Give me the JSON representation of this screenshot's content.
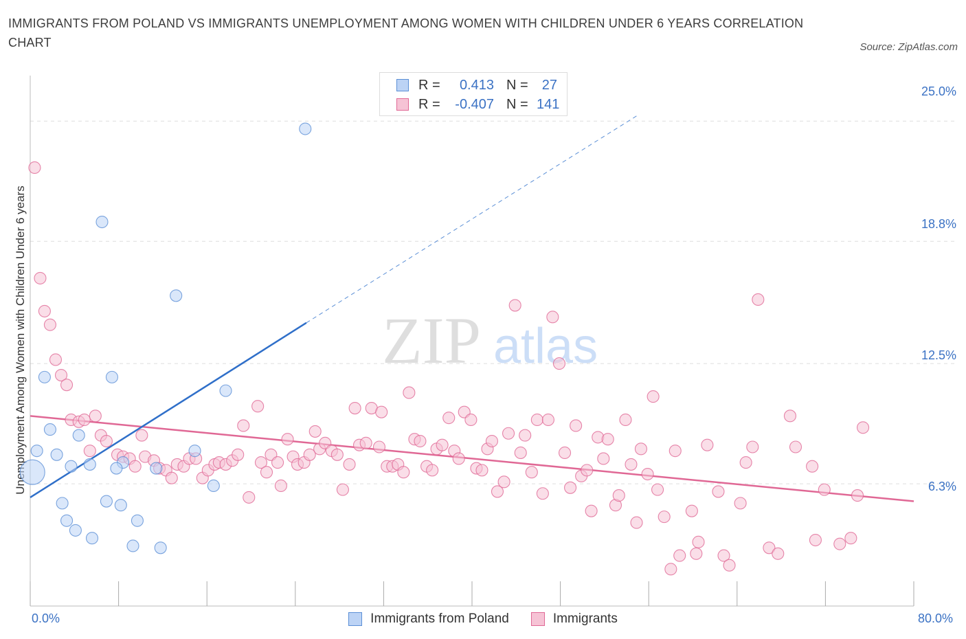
{
  "title": "IMMIGRANTS FROM POLAND VS IMMIGRANTS UNEMPLOYMENT AMONG WOMEN WITH CHILDREN UNDER 6 YEARS CORRELATION CHART",
  "source": "Source: ZipAtlas.com",
  "watermark": {
    "zip": "ZIP",
    "atlas": "atlas"
  },
  "legend": {
    "r_label": "R =",
    "n_label": "N =",
    "rows": [
      {
        "r": "0.413",
        "n": "27"
      },
      {
        "r": "-0.407",
        "n": "141"
      }
    ]
  },
  "chart_data": {
    "type": "scatter",
    "ylabel": "Unemployment Among Women with Children Under 6 years",
    "xlim": [
      0,
      80
    ],
    "ylim": [
      0,
      27.7
    ],
    "x_ticks": [
      "0.0%",
      "80.0%"
    ],
    "y_ticks": [
      {
        "value": 6.3,
        "label": "6.3%"
      },
      {
        "value": 12.5,
        "label": "12.5%"
      },
      {
        "value": 18.8,
        "label": "18.8%"
      },
      {
        "value": 25.0,
        "label": "25.0%"
      }
    ],
    "colors": {
      "blue": "#5b8fd6",
      "blue_fill": "#bcd3f5",
      "pink": "#e06895",
      "pink_fill": "#f6c3d5",
      "tick_text": "#3b72c4"
    },
    "series": [
      {
        "name": "Immigrants from Poland",
        "color": "#5b8fd6",
        "trend": {
          "x0": 0,
          "y0": 5.6,
          "x1": 25,
          "y1": 14.6,
          "dash_to_x": 55,
          "dash_to_y": 25.3
        },
        "points": [
          [
            24.9,
            24.6
          ],
          [
            6.5,
            19.8
          ],
          [
            13.2,
            16.0
          ],
          [
            1.3,
            11.8
          ],
          [
            7.4,
            11.8
          ],
          [
            17.7,
            11.1
          ],
          [
            1.8,
            9.1
          ],
          [
            4.4,
            8.8
          ],
          [
            0.6,
            8.0
          ],
          [
            2.4,
            7.8
          ],
          [
            14.9,
            8.0
          ],
          [
            8.4,
            7.4
          ],
          [
            3.7,
            7.2
          ],
          [
            5.4,
            7.3
          ],
          [
            7.8,
            7.1
          ],
          [
            11.4,
            7.1
          ],
          [
            0.2,
            6.9
          ],
          [
            16.6,
            6.2
          ],
          [
            2.9,
            5.3
          ],
          [
            6.9,
            5.4
          ],
          [
            8.2,
            5.2
          ],
          [
            3.3,
            4.4
          ],
          [
            9.7,
            4.4
          ],
          [
            4.1,
            3.9
          ],
          [
            5.6,
            3.5
          ],
          [
            9.3,
            3.1
          ],
          [
            11.8,
            3.0
          ]
        ]
      },
      {
        "name": "Immigrants",
        "color": "#e06895",
        "trend": {
          "x0": 0,
          "y0": 9.8,
          "x1": 80,
          "y1": 5.4
        },
        "points": [
          [
            0.4,
            22.6
          ],
          [
            0.9,
            16.9
          ],
          [
            1.3,
            15.2
          ],
          [
            1.8,
            14.5
          ],
          [
            2.3,
            12.7
          ],
          [
            2.8,
            11.9
          ],
          [
            3.3,
            11.4
          ],
          [
            3.7,
            9.6
          ],
          [
            4.4,
            9.5
          ],
          [
            4.9,
            9.6
          ],
          [
            5.9,
            9.8
          ],
          [
            6.4,
            8.8
          ],
          [
            6.9,
            8.5
          ],
          [
            5.4,
            8.0
          ],
          [
            7.9,
            7.8
          ],
          [
            8.4,
            7.7
          ],
          [
            9.0,
            7.6
          ],
          [
            9.5,
            7.2
          ],
          [
            10.1,
            8.8
          ],
          [
            10.4,
            7.7
          ],
          [
            11.2,
            7.5
          ],
          [
            11.7,
            7.1
          ],
          [
            12.3,
            7.0
          ],
          [
            12.8,
            6.6
          ],
          [
            13.3,
            7.3
          ],
          [
            13.9,
            7.2
          ],
          [
            14.4,
            7.6
          ],
          [
            15.0,
            7.6
          ],
          [
            15.6,
            6.6
          ],
          [
            16.1,
            7.0
          ],
          [
            16.7,
            7.3
          ],
          [
            17.1,
            7.4
          ],
          [
            17.7,
            7.3
          ],
          [
            18.3,
            7.5
          ],
          [
            18.8,
            7.8
          ],
          [
            19.3,
            9.3
          ],
          [
            19.8,
            5.6
          ],
          [
            20.6,
            10.3
          ],
          [
            20.9,
            7.4
          ],
          [
            21.4,
            6.9
          ],
          [
            21.8,
            7.8
          ],
          [
            22.4,
            7.4
          ],
          [
            22.7,
            6.2
          ],
          [
            23.3,
            8.6
          ],
          [
            23.8,
            7.7
          ],
          [
            24.2,
            7.3
          ],
          [
            24.8,
            7.4
          ],
          [
            25.3,
            7.8
          ],
          [
            25.8,
            9.0
          ],
          [
            26.2,
            8.1
          ],
          [
            26.7,
            8.4
          ],
          [
            27.3,
            8.0
          ],
          [
            27.8,
            7.8
          ],
          [
            28.3,
            6.0
          ],
          [
            28.9,
            7.3
          ],
          [
            29.4,
            10.2
          ],
          [
            29.8,
            8.3
          ],
          [
            30.4,
            8.4
          ],
          [
            30.9,
            10.2
          ],
          [
            31.6,
            8.2
          ],
          [
            31.8,
            10.0
          ],
          [
            32.3,
            7.2
          ],
          [
            32.8,
            7.2
          ],
          [
            33.3,
            7.3
          ],
          [
            33.8,
            6.9
          ],
          [
            34.3,
            11.0
          ],
          [
            34.8,
            8.6
          ],
          [
            35.3,
            8.5
          ],
          [
            35.9,
            7.2
          ],
          [
            36.4,
            7.0
          ],
          [
            36.8,
            8.1
          ],
          [
            37.3,
            8.3
          ],
          [
            37.9,
            9.7
          ],
          [
            38.4,
            8.0
          ],
          [
            38.8,
            7.6
          ],
          [
            39.3,
            10.0
          ],
          [
            39.9,
            9.6
          ],
          [
            40.4,
            7.1
          ],
          [
            40.9,
            7.0
          ],
          [
            41.4,
            8.1
          ],
          [
            41.8,
            8.5
          ],
          [
            42.3,
            5.9
          ],
          [
            42.9,
            6.4
          ],
          [
            43.3,
            8.9
          ],
          [
            43.9,
            15.5
          ],
          [
            44.4,
            7.9
          ],
          [
            44.8,
            8.8
          ],
          [
            45.4,
            6.9
          ],
          [
            45.9,
            9.6
          ],
          [
            46.4,
            5.8
          ],
          [
            46.9,
            9.6
          ],
          [
            47.3,
            14.9
          ],
          [
            47.9,
            12.5
          ],
          [
            48.4,
            7.9
          ],
          [
            48.9,
            6.1
          ],
          [
            49.4,
            9.3
          ],
          [
            49.9,
            6.7
          ],
          [
            50.4,
            7.0
          ],
          [
            50.8,
            4.9
          ],
          [
            51.4,
            8.7
          ],
          [
            51.9,
            7.6
          ],
          [
            52.3,
            8.6
          ],
          [
            53.0,
            5.2
          ],
          [
            53.3,
            5.7
          ],
          [
            53.9,
            9.6
          ],
          [
            54.4,
            7.3
          ],
          [
            54.9,
            4.3
          ],
          [
            55.3,
            8.1
          ],
          [
            55.9,
            6.8
          ],
          [
            56.4,
            10.8
          ],
          [
            56.8,
            6.0
          ],
          [
            57.4,
            4.6
          ],
          [
            58.0,
            1.9
          ],
          [
            58.4,
            8.0
          ],
          [
            58.8,
            2.6
          ],
          [
            59.9,
            4.9
          ],
          [
            60.3,
            2.7
          ],
          [
            60.5,
            3.3
          ],
          [
            61.3,
            8.3
          ],
          [
            62.3,
            5.9
          ],
          [
            62.8,
            2.6
          ],
          [
            63.3,
            2.1
          ],
          [
            64.3,
            5.3
          ],
          [
            64.8,
            7.4
          ],
          [
            65.4,
            8.2
          ],
          [
            65.9,
            15.8
          ],
          [
            66.9,
            3.0
          ],
          [
            67.7,
            2.7
          ],
          [
            68.8,
            9.8
          ],
          [
            69.3,
            8.2
          ],
          [
            70.8,
            7.2
          ],
          [
            71.1,
            3.4
          ],
          [
            71.9,
            6.0
          ],
          [
            73.3,
            3.2
          ],
          [
            74.3,
            3.5
          ],
          [
            74.9,
            5.7
          ],
          [
            75.4,
            9.2
          ]
        ]
      }
    ]
  }
}
